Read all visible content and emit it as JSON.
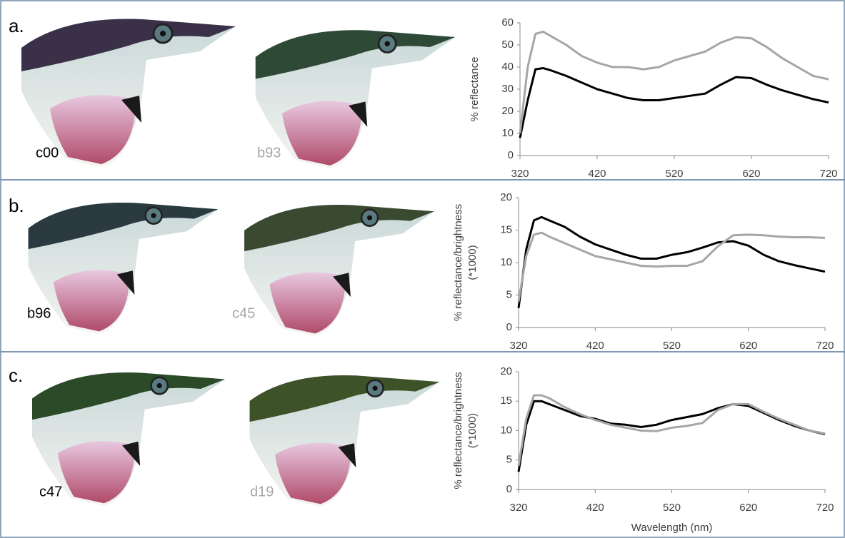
{
  "chart_data": [
    {
      "type": "line",
      "panel": "a.",
      "ylabel": [
        "% reflectance"
      ],
      "x": [
        320,
        330,
        340,
        350,
        360,
        380,
        400,
        420,
        440,
        460,
        480,
        500,
        520,
        540,
        560,
        580,
        600,
        620,
        640,
        660,
        680,
        700,
        720
      ],
      "series": [
        {
          "name": "c00",
          "color": "#000000",
          "values": [
            8,
            25,
            39,
            39.5,
            38.5,
            36,
            33,
            30,
            28,
            26,
            25,
            25,
            26,
            27,
            28,
            32,
            35.5,
            35,
            32,
            29.5,
            27.5,
            25.5,
            24
          ]
        },
        {
          "name": "b93",
          "color": "#a6a6a6",
          "values": [
            10,
            40,
            55,
            56,
            54,
            50,
            45,
            42,
            40,
            40,
            39,
            40,
            43,
            45,
            47,
            51,
            53.5,
            53,
            49,
            44,
            40,
            36,
            34.5
          ]
        }
      ],
      "xlim": [
        320,
        720
      ],
      "xticks": [
        320,
        420,
        520,
        620,
        720
      ],
      "ylim": [
        0,
        60
      ],
      "yticks": [
        0,
        10,
        20,
        30,
        40,
        50,
        60
      ]
    },
    {
      "type": "line",
      "panel": "b.",
      "ylabel": [
        "% reflectance/brightness",
        "(*1000)"
      ],
      "x": [
        320,
        330,
        340,
        350,
        360,
        380,
        400,
        420,
        440,
        460,
        480,
        500,
        520,
        540,
        560,
        580,
        600,
        620,
        640,
        660,
        680,
        700,
        720
      ],
      "series": [
        {
          "name": "b96",
          "color": "#000000",
          "values": [
            3,
            12,
            16.5,
            17,
            16.5,
            15.5,
            14,
            12.8,
            12,
            11.2,
            10.6,
            10.6,
            11.2,
            11.6,
            12.3,
            13.1,
            13.3,
            12.6,
            11.2,
            10.2,
            9.6,
            9.1,
            8.6
          ]
        },
        {
          "name": "c45",
          "color": "#a6a6a6",
          "values": [
            4,
            11,
            14.3,
            14.6,
            14,
            13,
            12,
            11,
            10.5,
            10,
            9.5,
            9.4,
            9.5,
            9.5,
            10.2,
            12.5,
            14.2,
            14.3,
            14.2,
            14,
            13.9,
            13.9,
            13.8
          ]
        }
      ],
      "xlim": [
        320,
        720
      ],
      "xticks": [
        320,
        420,
        520,
        620,
        720
      ],
      "ylim": [
        0,
        20
      ],
      "yticks": [
        0,
        5,
        10,
        15,
        20
      ]
    },
    {
      "type": "line",
      "panel": "c.",
      "ylabel": [
        "% reflectance/brightness",
        "(*1000)"
      ],
      "xlabel": "Wavelength (nm)",
      "x": [
        320,
        330,
        340,
        350,
        360,
        380,
        400,
        420,
        440,
        460,
        480,
        500,
        520,
        540,
        560,
        580,
        600,
        620,
        640,
        660,
        680,
        700,
        720
      ],
      "series": [
        {
          "name": "c47",
          "color": "#000000",
          "values": [
            3,
            11,
            15,
            15,
            14.5,
            13.5,
            12.5,
            12,
            11.2,
            11,
            10.6,
            11,
            11.8,
            12.3,
            12.8,
            13.8,
            14.5,
            14.2,
            13,
            11.8,
            10.8,
            10,
            9.4
          ]
        },
        {
          "name": "d19",
          "color": "#a6a6a6",
          "values": [
            4,
            12,
            16,
            16,
            15.5,
            14,
            12.8,
            11.8,
            11,
            10.5,
            10,
            9.9,
            10.5,
            10.8,
            11.3,
            13.5,
            14.5,
            14.5,
            13.2,
            12,
            11,
            10,
            9.5
          ]
        }
      ],
      "xlim": [
        320,
        720
      ],
      "xticks": [
        320,
        420,
        520,
        620,
        720
      ],
      "ylim": [
        0,
        20
      ],
      "yticks": [
        0,
        5,
        10,
        15,
        20
      ]
    }
  ]
}
